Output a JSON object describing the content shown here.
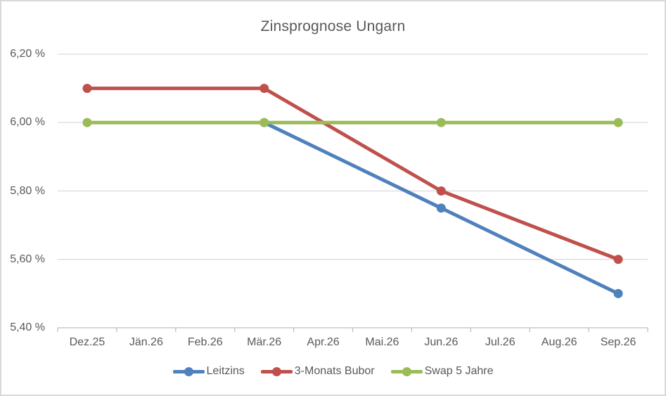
{
  "chart_data": {
    "type": "line",
    "title": "Zinsprognose Ungarn",
    "categories": [
      "Dez.25",
      "Jän.26",
      "Feb.26",
      "Mär.26",
      "Apr.26",
      "Mai.26",
      "Jun.26",
      "Jul.26",
      "Aug.26",
      "Sep.26"
    ],
    "y_ticks": [
      {
        "label": "6,20 %",
        "value": 6.2
      },
      {
        "label": "6,00 %",
        "value": 6.0
      },
      {
        "label": "5,80 %",
        "value": 5.8
      },
      {
        "label": "5,60 %",
        "value": 5.6
      },
      {
        "label": "5,40 %",
        "value": 5.4
      }
    ],
    "ylim": [
      5.4,
      6.2
    ],
    "xlabel": "",
    "ylabel": "",
    "grid": true,
    "legend_position": "bottom",
    "marker": "circle",
    "series": [
      {
        "name": "Leitzins",
        "color": "#4F81BD",
        "values": [
          null,
          null,
          null,
          6.0,
          null,
          null,
          5.75,
          null,
          null,
          5.5
        ]
      },
      {
        "name": "3-Monats Bubor",
        "color": "#C0504D",
        "values": [
          6.1,
          null,
          null,
          6.1,
          null,
          null,
          5.8,
          null,
          null,
          5.6
        ]
      },
      {
        "name": "Swap 5 Jahre",
        "color": "#9BBB59",
        "values": [
          6.0,
          null,
          null,
          6.0,
          null,
          null,
          6.0,
          null,
          null,
          6.0
        ]
      }
    ]
  },
  "colors": {
    "text": "#595959",
    "gridline": "#D9D9D9",
    "axis": "#BFBFBF",
    "frame_border": "#D9D9D9",
    "background": "#FFFFFF"
  }
}
